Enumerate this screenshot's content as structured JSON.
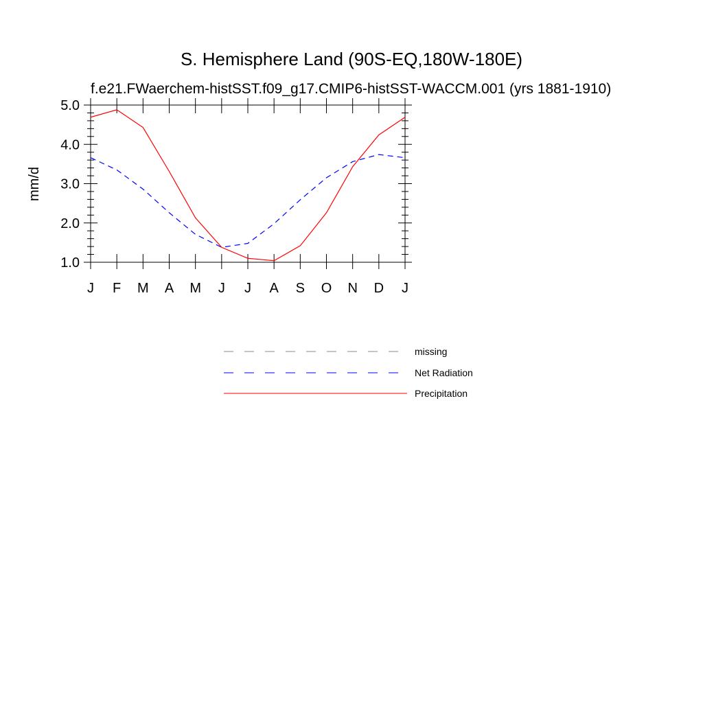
{
  "chart_data": {
    "type": "line",
    "title": "S. Hemisphere Land (90S-EQ,180W-180E)",
    "subtitle": "f.e21.FWaerchem-histSST.f09_g17.CMIP6-histSST-WACCM.001 (yrs 1881-1910)",
    "ylabel": "mm/d",
    "xlabel": "",
    "x_tick_labels": [
      "J",
      "F",
      "M",
      "A",
      "M",
      "J",
      "J",
      "A",
      "S",
      "O",
      "N",
      "D",
      "J"
    ],
    "y_tick_labels": [
      "1.0",
      "2.0",
      "3.0",
      "4.0",
      "5.0"
    ],
    "y_ticks": [
      1.0,
      2.0,
      3.0,
      4.0,
      5.0
    ],
    "ylim": [
      1.0,
      5.0
    ],
    "xlim": [
      0,
      12
    ],
    "grid": false,
    "legend_position": "bottom-center",
    "series": [
      {
        "name": "missing",
        "color": "#888888",
        "dash": "dashed",
        "values": []
      },
      {
        "name": "Net Radiation",
        "color": "#0000ff",
        "dash": "dashed",
        "values": [
          3.66,
          3.35,
          2.86,
          2.26,
          1.71,
          1.38,
          1.48,
          1.98,
          2.59,
          3.15,
          3.56,
          3.74,
          3.66
        ]
      },
      {
        "name": "Precipitation",
        "color": "#ff0000",
        "dash": "solid",
        "values": [
          4.69,
          4.88,
          4.43,
          3.31,
          2.13,
          1.38,
          1.1,
          1.04,
          1.42,
          2.26,
          3.43,
          4.24,
          4.69
        ]
      }
    ]
  }
}
